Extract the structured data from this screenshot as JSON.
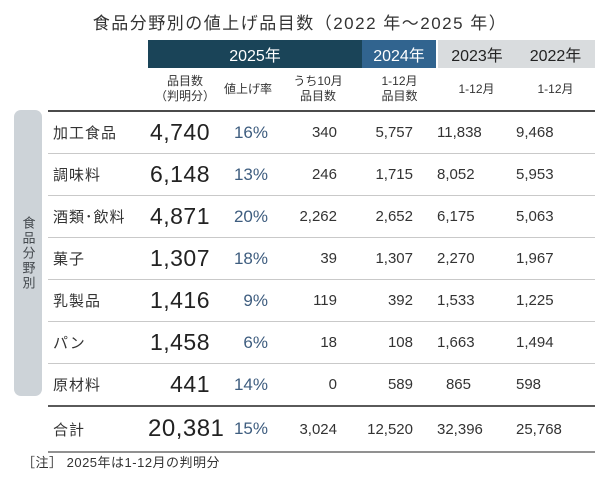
{
  "title": "食品分野別の値上げ品目数（2022 年～2025 年）",
  "sidebar": {
    "label": "食品分野別"
  },
  "note": "［注］ 2025年は1-12月の判明分",
  "colors": {
    "header_2025_navy": "#1a4458",
    "header_2024_blue": "#31648f",
    "header_prior_gray": "#d9dcde",
    "sidebar_gray": "#cdd3d8",
    "percent_text": "#3e5d7f"
  },
  "header": {
    "years": [
      {
        "label": "2025年"
      },
      {
        "label": "2024年"
      },
      {
        "label": "2023年"
      },
      {
        "label": "2022年"
      }
    ],
    "columns": [
      {
        "line1": "品目数",
        "line2": "（判明分）"
      },
      {
        "line1": "値上げ率",
        "line2": ""
      },
      {
        "line1": "うち10月",
        "line2": "品目数"
      },
      {
        "line1": "1-12月",
        "line2": "品目数"
      },
      {
        "line1": "1-12月",
        "line2": ""
      },
      {
        "line1": "1-12月",
        "line2": ""
      }
    ]
  },
  "rows": [
    {
      "label": "加工食品",
      "count": "4,740",
      "rate": "16%",
      "oct": "340",
      "y2024": "5,757",
      "y2023": "11,838",
      "y2022": "9,468"
    },
    {
      "label": "調味料",
      "count": "6,148",
      "rate": "13%",
      "oct": "246",
      "y2024": "1,715",
      "y2023": "8,052",
      "y2022": "5,953"
    },
    {
      "label": "酒類･飲料",
      "count": "4,871",
      "rate": "20%",
      "oct": "2,262",
      "y2024": "2,652",
      "y2023": "6,175",
      "y2022": "5,063"
    },
    {
      "label": "菓子",
      "count": "1,307",
      "rate": "18%",
      "oct": "39",
      "y2024": "1,307",
      "y2023": "2,270",
      "y2022": "1,967"
    },
    {
      "label": "乳製品",
      "count": "1,416",
      "rate": "9%",
      "oct": "119",
      "y2024": "392",
      "y2023": "1,533",
      "y2022": "1,225"
    },
    {
      "label": "パン",
      "count": "1,458",
      "rate": "6%",
      "oct": "18",
      "y2024": "108",
      "y2023": "1,663",
      "y2022": "1,494"
    },
    {
      "label": "原材料",
      "count": "441",
      "rate": "14%",
      "oct": "0",
      "y2024": "589",
      "y2023": "865",
      "y2022": "598"
    },
    {
      "label": "合計",
      "count": "20,381",
      "rate": "15%",
      "oct": "3,024",
      "y2024": "12,520",
      "y2023": "32,396",
      "y2022": "25,768"
    }
  ],
  "chart_data": {
    "type": "table",
    "title": "食品分野別の値上げ品目数（2022年～2025年）",
    "row_axis_label": "食品分野別",
    "columns": [
      "2025年 品目数（判明分）",
      "2025年 値上げ率",
      "2025年 うち10月品目数",
      "2024年 1-12月品目数",
      "2023年 1-12月",
      "2022年 1-12月"
    ],
    "categories": [
      "加工食品",
      "調味料",
      "酒類･飲料",
      "菓子",
      "乳製品",
      "パン",
      "原材料",
      "合計"
    ],
    "rows": [
      [
        4740,
        "16%",
        340,
        5757,
        11838,
        9468
      ],
      [
        6148,
        "13%",
        246,
        1715,
        8052,
        5953
      ],
      [
        4871,
        "20%",
        2262,
        2652,
        6175,
        5063
      ],
      [
        1307,
        "18%",
        39,
        1307,
        2270,
        1967
      ],
      [
        1416,
        "9%",
        119,
        392,
        1533,
        1225
      ],
      [
        1458,
        "6%",
        18,
        108,
        1663,
        1494
      ],
      [
        441,
        "14%",
        0,
        589,
        865,
        598
      ],
      [
        20381,
        "15%",
        3024,
        12520,
        32396,
        25768
      ]
    ],
    "note": "2025年は1-12月の判明分"
  }
}
